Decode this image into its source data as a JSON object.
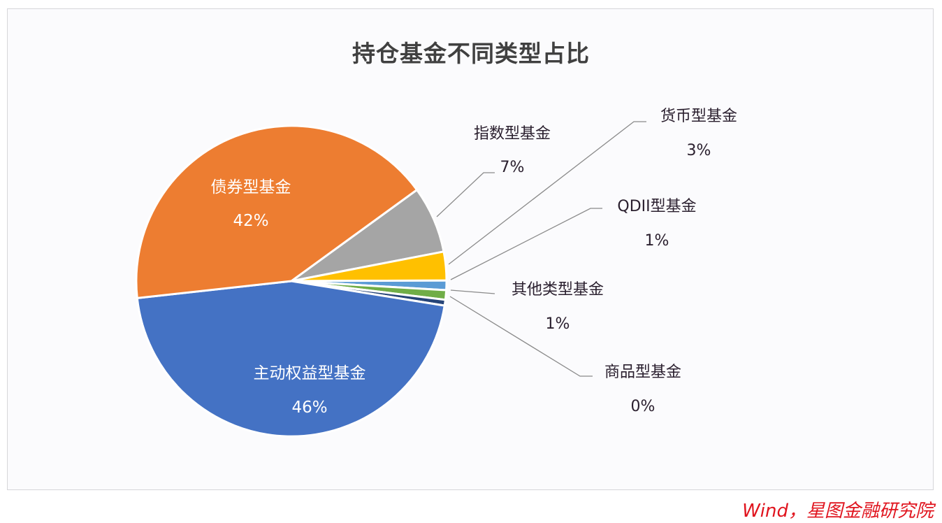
{
  "title": "持仓基金不同类型占比",
  "source": "Wind，星图金融研究院",
  "chart_data": {
    "type": "pie",
    "title": "持仓基金不同类型占比",
    "categories": [
      "主动权益型基金",
      "债券型基金",
      "指数型基金",
      "货币型基金",
      "QDII型基金",
      "其他类型基金",
      "商品型基金"
    ],
    "values": [
      46,
      42,
      7,
      3,
      1,
      1,
      0
    ],
    "labels": [
      "46%",
      "42%",
      "7%",
      "3%",
      "1%",
      "1%",
      "0%"
    ],
    "colors": [
      "#4472c4",
      "#ed7d31",
      "#a5a5a5",
      "#ffc000",
      "#5b9bd5",
      "#70ad47",
      "#264478"
    ],
    "legend": "none (data labels with leader lines)",
    "slices_clockwise_from_top_right": [
      {
        "name": "指数型基金",
        "pct": 7,
        "color": "#a5a5a5"
      },
      {
        "name": "货币型基金",
        "pct": 3,
        "color": "#ffc000"
      },
      {
        "name": "QDII型基金",
        "pct": 1,
        "color": "#5b9bd5"
      },
      {
        "name": "其他类型基金",
        "pct": 1,
        "color": "#70ad47"
      },
      {
        "name": "商品型基金",
        "pct": 0,
        "color": "#264478"
      },
      {
        "name": "主动权益型基金",
        "pct": 46,
        "color": "#4472c4"
      },
      {
        "name": "债券型基金",
        "pct": 42,
        "color": "#ed7d31"
      }
    ]
  }
}
